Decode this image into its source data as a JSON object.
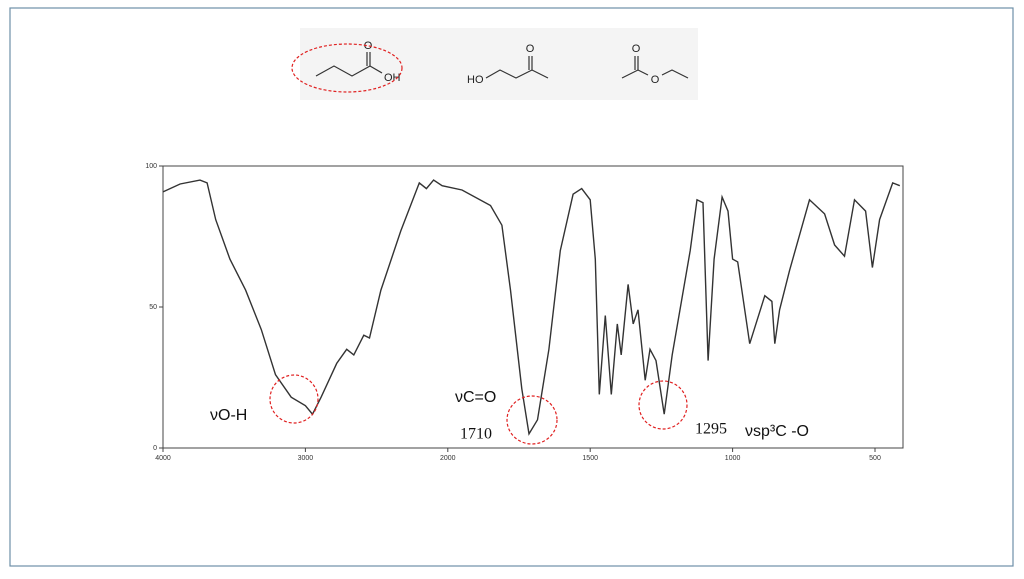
{
  "structures": [
    {
      "labels": [
        "O",
        "OH"
      ]
    },
    {
      "labels": [
        "HO",
        "O"
      ]
    },
    {
      "labels": [
        "O",
        "O"
      ]
    }
  ],
  "chart_data": {
    "type": "line",
    "color": "#333333",
    "x": [
      4000,
      3880,
      3740,
      3690,
      3630,
      3530,
      3420,
      3310,
      3210,
      3100,
      3000,
      2950,
      2890,
      2780,
      2710,
      2660,
      2590,
      2550,
      2470,
      2330,
      2200,
      2150,
      2100,
      2040,
      1950,
      1850,
      1810,
      1780,
      1740,
      1715,
      1685,
      1645,
      1605,
      1560,
      1530,
      1500,
      1482,
      1468,
      1447,
      1426,
      1405,
      1391,
      1367,
      1349,
      1332,
      1307,
      1290,
      1269,
      1240,
      1212,
      1149,
      1125,
      1104,
      1086,
      1065,
      1037,
      1016,
      1000,
      982,
      940,
      887,
      862,
      852,
      835,
      800,
      730,
      677,
      642,
      607,
      572,
      533,
      509,
      484,
      438,
      413
    ],
    "values": [
      90.8,
      93.6,
      95,
      94,
      81,
      67,
      56,
      42,
      26,
      18,
      15,
      12,
      18,
      30,
      35,
      33,
      40,
      39,
      56,
      77,
      94,
      92,
      95,
      93,
      91.5,
      86,
      79,
      56,
      21,
      5,
      10,
      35,
      70,
      90,
      92,
      88,
      67,
      19,
      47,
      19,
      44,
      33,
      58,
      44,
      49,
      24,
      35,
      31,
      12,
      33,
      70,
      88,
      87,
      31,
      67,
      89,
      84,
      67,
      66,
      37,
      54,
      52,
      37,
      49,
      63,
      88,
      83,
      72,
      68,
      88,
      84,
      64,
      81,
      94,
      93
    ],
    "xlim": [
      4000,
      400
    ],
    "xticks": [
      4000,
      3000,
      2000,
      1500,
      1000,
      500
    ],
    "ylim": [
      0,
      100
    ],
    "yticks": [
      0,
      50,
      100
    ],
    "annotations": [
      "νO-H",
      "νC=O",
      "1710",
      "1295",
      "νsp³C -O"
    ]
  }
}
